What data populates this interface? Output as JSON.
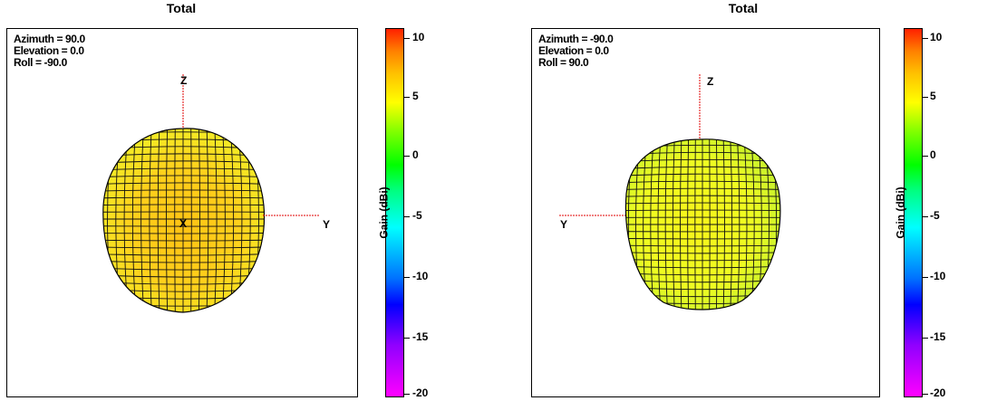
{
  "chart_data": [
    {
      "type": "3d-radiation-pattern",
      "title": "Total",
      "view": {
        "azimuth": "Azimuth = 90.0",
        "elevation": "Elevation = 0.0",
        "roll": "Roll = -90.0"
      },
      "axes": [
        "Z",
        "X",
        "Y"
      ],
      "colorbar": {
        "label": "Gain  (dBi)",
        "ticks": [
          "10",
          "5",
          "0",
          "-5",
          "-10",
          "-15",
          "-20"
        ],
        "range": [
          -20,
          11
        ]
      },
      "surface_color": "#ffd21c"
    },
    {
      "type": "3d-radiation-pattern",
      "title": "Total",
      "view": {
        "azimuth": "Azimuth = -90.0",
        "elevation": "Elevation = 0.0",
        "roll": "Roll = 90.0"
      },
      "axes": [
        "Z",
        "Y"
      ],
      "colorbar": {
        "label": "Gain  (dBi)",
        "ticks": [
          "10",
          "5",
          "0",
          "-5",
          "-10",
          "-15",
          "-20"
        ],
        "range": [
          -20,
          11
        ]
      },
      "surface_color": "#eeff20"
    }
  ]
}
